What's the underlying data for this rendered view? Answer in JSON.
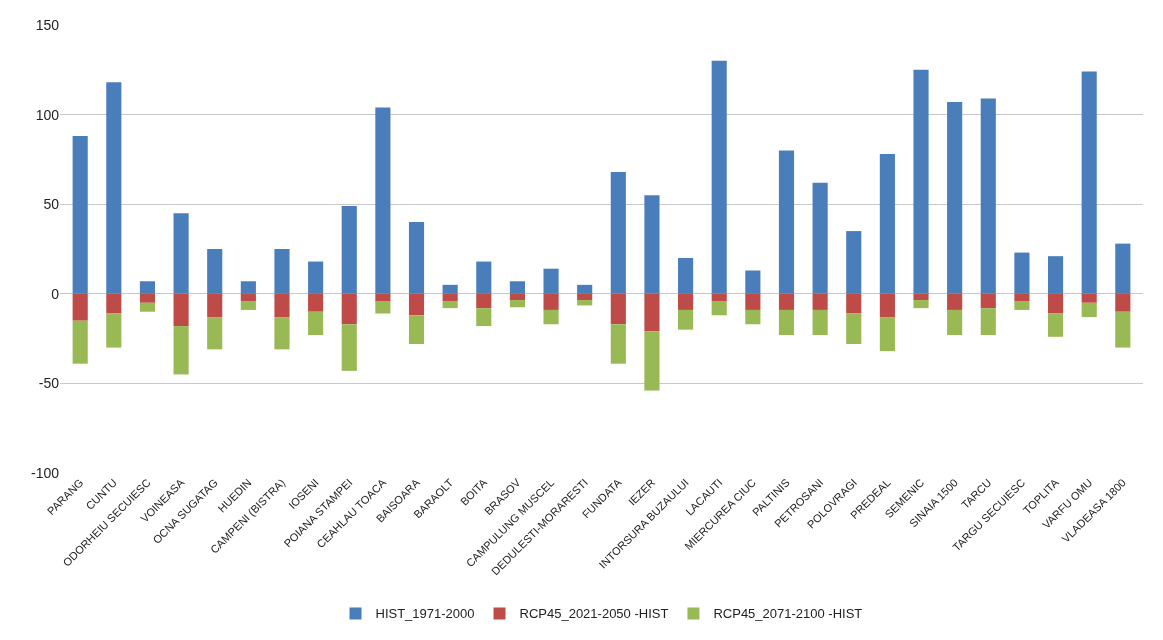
{
  "chart_data": {
    "type": "bar",
    "stacked": true,
    "categories": [
      "PARANG",
      "CUNTU",
      "ODORHEIU SECUIESC",
      "VOINEASA",
      "OCNA SUGATAG",
      "HUEDIN",
      "CAMPENI (BISTRA)",
      "IOSENI",
      "POIANA STAMPEI",
      "CEAHLAU TOACA",
      "BAISOARA",
      "BARAOLT",
      "BOITA",
      "BRASOV",
      "CAMPULUNG MUSCEL",
      "DEDULESTI-MORARESTI",
      "FUNDATA",
      "IEZER",
      "INTORSURA BUZAULUI",
      "LACAUTI",
      "MIERCUREA CIUC",
      "PALTINIS",
      "PETROSANI",
      "POLOVRAGI",
      "PREDEAL",
      "SEMENIC",
      "SINAIA 1500",
      "TARCU",
      "TARGU SECUIESC",
      "TOPLITA",
      "VARFU OMU",
      "VLADEASA 1800"
    ],
    "series": [
      {
        "name": "HIST_1971-2000",
        "color": "#4a7ebb",
        "values": [
          88,
          118,
          7,
          45,
          25,
          7,
          25,
          18,
          49,
          104,
          40,
          5,
          18,
          7,
          14,
          5,
          68,
          55,
          20,
          130,
          13,
          80,
          62,
          35,
          78,
          125,
          107,
          109,
          23,
          21,
          124,
          28
        ]
      },
      {
        "name": "RCP45_2021-2050 -HIST",
        "color": "#be4b48",
        "values": [
          -15,
          -11,
          -5,
          -18,
          -13,
          -4,
          -13,
          -10,
          -17,
          -4,
          -12,
          -4,
          -8,
          -3.5,
          -9,
          -3.5,
          -17,
          -21,
          -9,
          -4,
          -9,
          -9,
          -9,
          -11,
          -13,
          -3.5,
          -9,
          -8,
          -4,
          -11,
          -5,
          -10
        ]
      },
      {
        "name": "RCP45_2071-2100 -HIST",
        "color": "#98b954",
        "values": [
          -24,
          -19,
          -5,
          -27,
          -18,
          -5,
          -18,
          -13,
          -26,
          -7,
          -16,
          -4,
          -10,
          -4,
          -8,
          -3,
          -22,
          -33,
          -11,
          -8,
          -8,
          -14,
          -14,
          -17,
          -19,
          -4.5,
          -14,
          -15,
          -5,
          -13,
          -8,
          -20
        ]
      }
    ],
    "ylim": [
      -100,
      150
    ],
    "yticks": [
      -100,
      -50,
      0,
      50,
      100,
      150
    ],
    "grid": "y",
    "legend": "bottom"
  }
}
